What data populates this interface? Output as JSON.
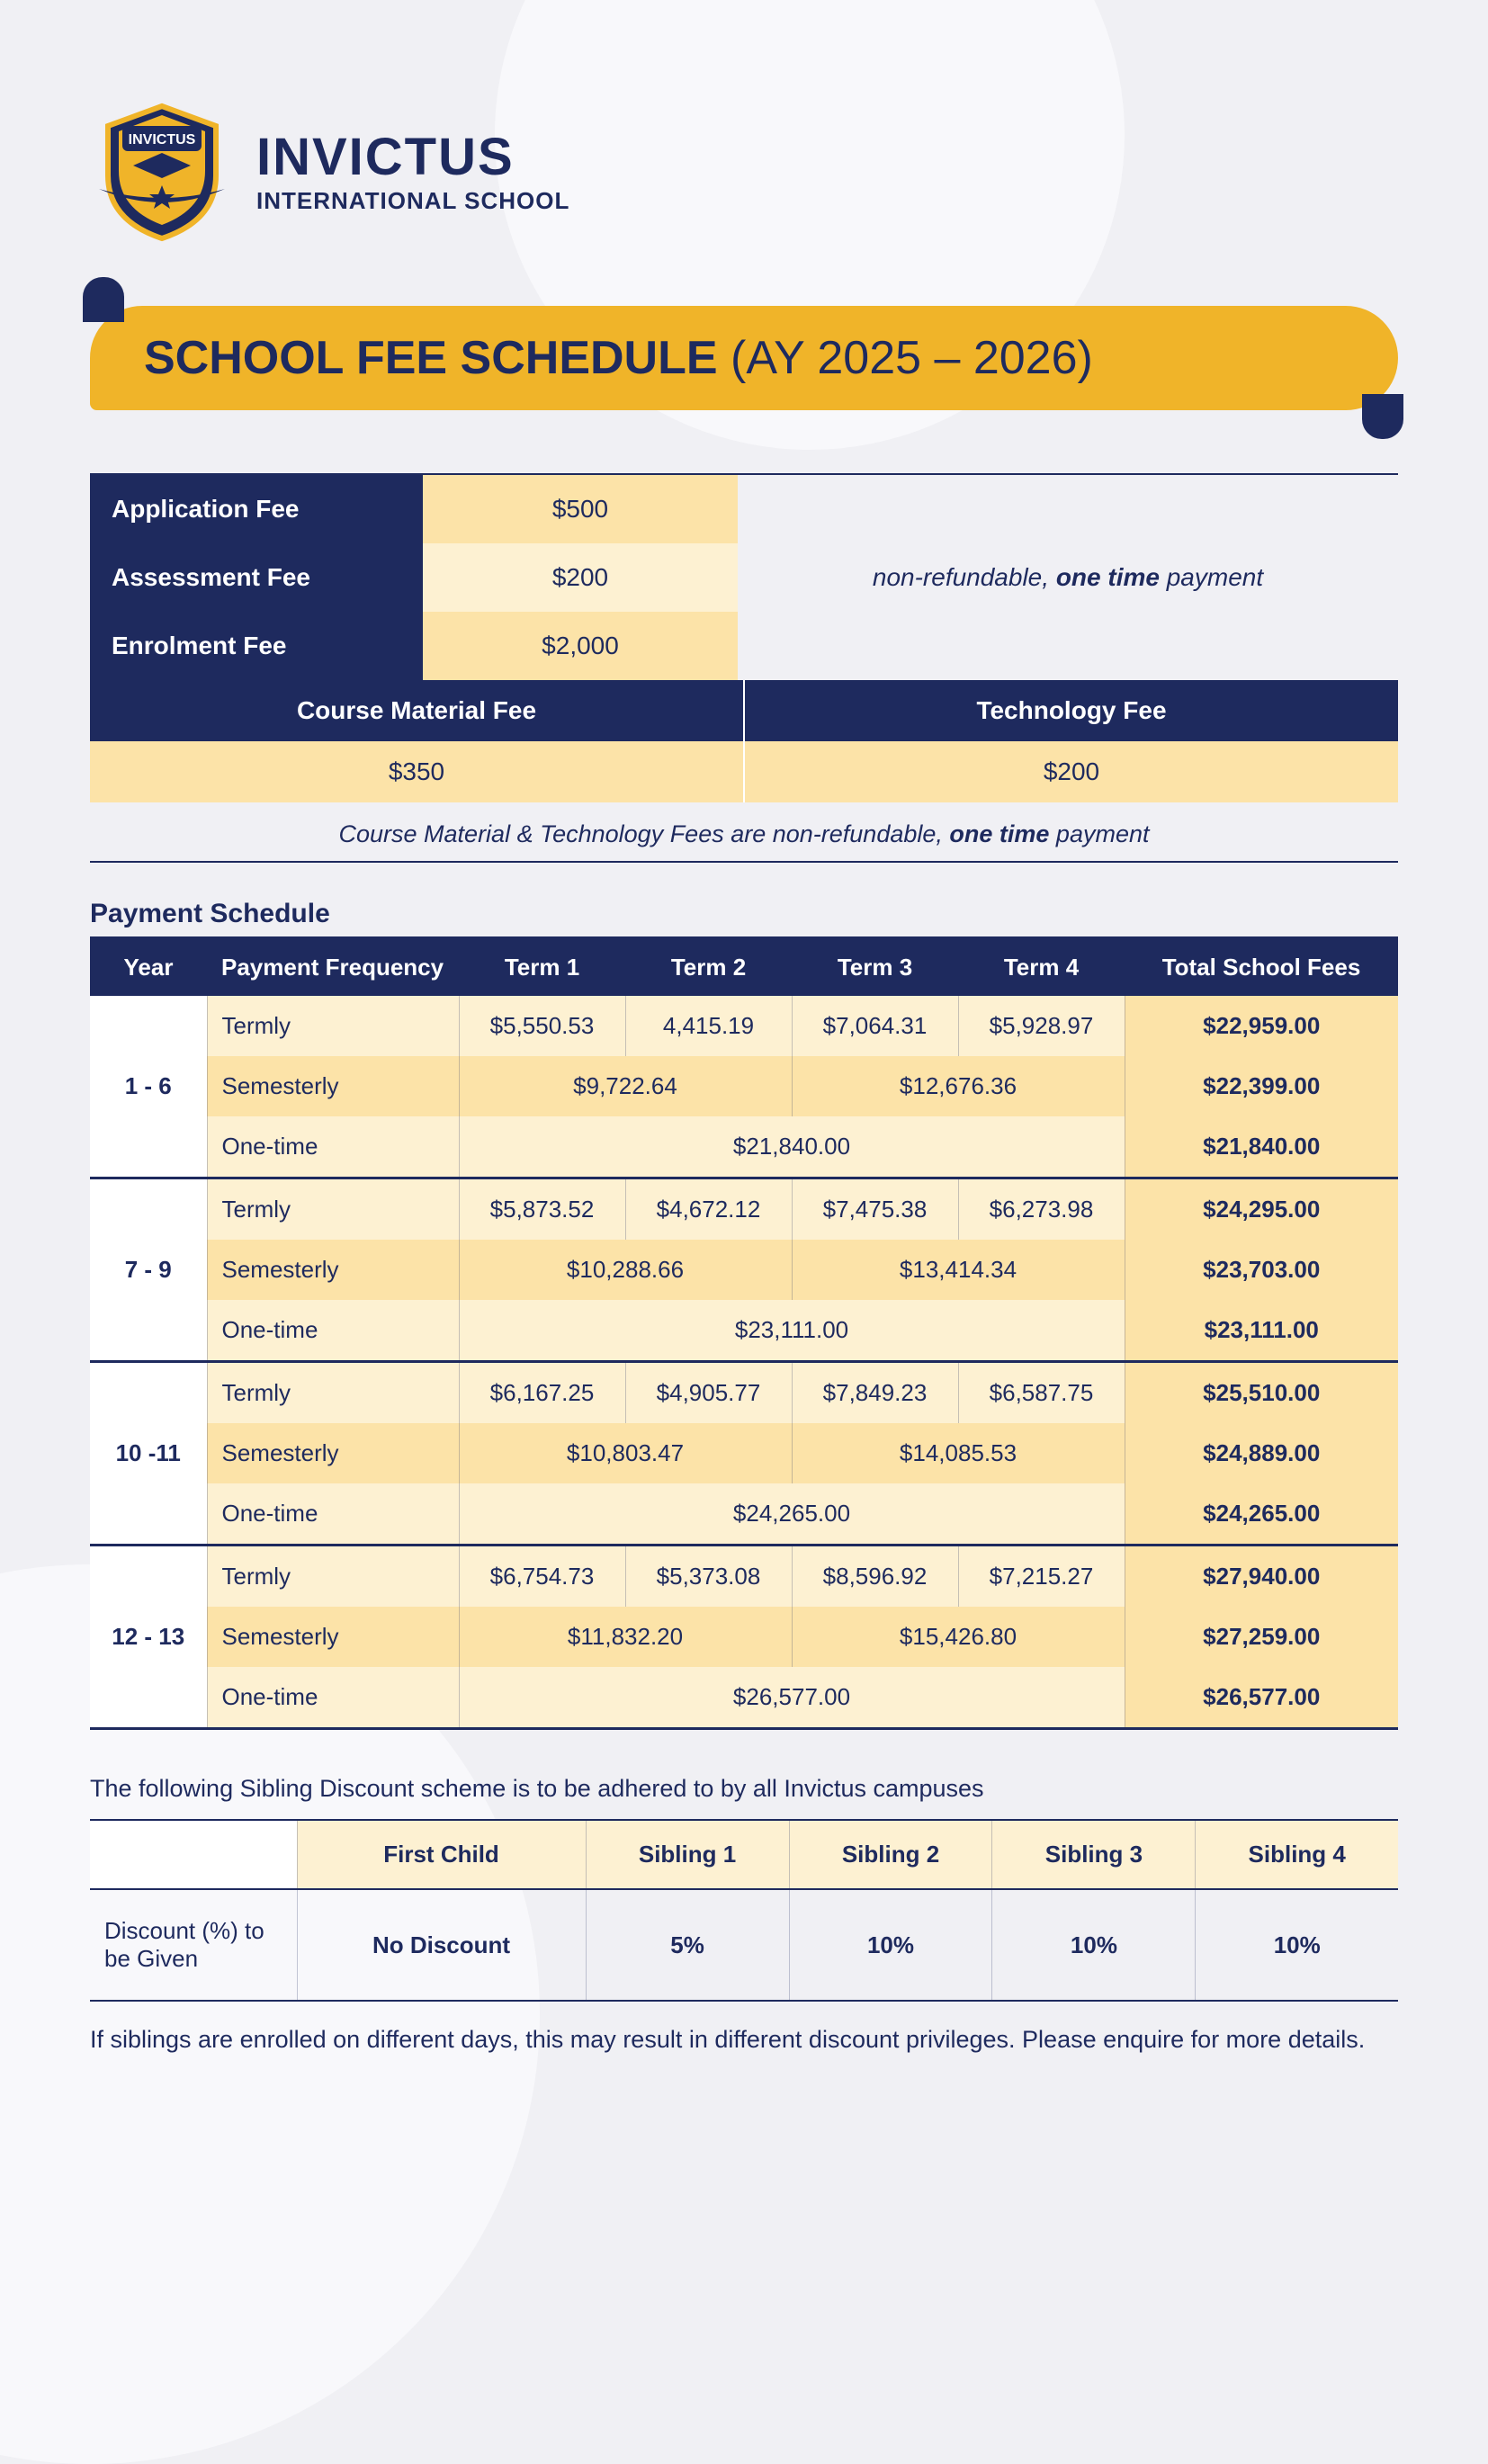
{
  "colors": {
    "navy": "#1e2a5e",
    "gold": "#f0b429",
    "gold_light": "#fdf1d2",
    "gold_mid": "#fce3a8",
    "page_bg": "#f0f0f4"
  },
  "brand": {
    "name": "INVICTUS",
    "subtitle": "INTERNATIONAL SCHOOL",
    "shield_text": "INVICTUS"
  },
  "title": {
    "main": "SCHOOL FEE SCHEDULE",
    "suffix": "(AY 2025 – 2026)"
  },
  "intro_fees": {
    "rows": [
      {
        "label": "Application Fee",
        "value": "$500"
      },
      {
        "label": "Assessment Fee",
        "value": "$200"
      },
      {
        "label": "Enrolment Fee",
        "value": "$2,000"
      }
    ],
    "note_pre": "non-refundable, ",
    "note_bold": "one time",
    "note_post": " payment"
  },
  "material_fees": {
    "headers": [
      "Course Material Fee",
      "Technology Fee"
    ],
    "values": [
      "$350",
      "$200"
    ],
    "note_pre": "Course Material & Technology Fees are non-refundable, ",
    "note_bold": "one time",
    "note_post": " payment"
  },
  "payment_schedule": {
    "heading": "Payment Schedule",
    "columns": [
      "Year",
      "Payment Frequency",
      "Term 1",
      "Term 2",
      "Term 3",
      "Term 4",
      "Total School Fees"
    ],
    "groups": [
      {
        "year": "1 - 6",
        "termly": {
          "label": "Termly",
          "t1": "$5,550.53",
          "t2": "4,415.19",
          "t3": "$7,064.31",
          "t4": "$5,928.97",
          "total": "$22,959.00"
        },
        "semesterly": {
          "label": "Semesterly",
          "s1": "$9,722.64",
          "s2": "$12,676.36",
          "total": "$22,399.00"
        },
        "onetime": {
          "label": "One-time",
          "v": "$21,840.00",
          "total": "$21,840.00"
        }
      },
      {
        "year": "7 - 9",
        "termly": {
          "label": "Termly",
          "t1": "$5,873.52",
          "t2": "$4,672.12",
          "t3": "$7,475.38",
          "t4": "$6,273.98",
          "total": "$24,295.00"
        },
        "semesterly": {
          "label": "Semesterly",
          "s1": "$10,288.66",
          "s2": "$13,414.34",
          "total": "$23,703.00"
        },
        "onetime": {
          "label": "One-time",
          "v": "$23,111.00",
          "total": "$23,111.00"
        }
      },
      {
        "year": "10 -11",
        "termly": {
          "label": "Termly",
          "t1": "$6,167.25",
          "t2": "$4,905.77",
          "t3": "$7,849.23",
          "t4": "$6,587.75",
          "total": "$25,510.00"
        },
        "semesterly": {
          "label": "Semesterly",
          "s1": "$10,803.47",
          "s2": "$14,085.53",
          "total": "$24,889.00"
        },
        "onetime": {
          "label": "One-time",
          "v": "$24,265.00",
          "total": "$24,265.00"
        }
      },
      {
        "year": "12 - 13",
        "termly": {
          "label": "Termly",
          "t1": "$6,754.73",
          "t2": "$5,373.08",
          "t3": "$8,596.92",
          "t4": "$7,215.27",
          "total": "$27,940.00"
        },
        "semesterly": {
          "label": "Semesterly",
          "s1": "$11,832.20",
          "s2": "$15,426.80",
          "total": "$27,259.00"
        },
        "onetime": {
          "label": "One-time",
          "v": "$26,577.00",
          "total": "$26,577.00"
        }
      }
    ]
  },
  "sibling": {
    "intro": "The following Sibling Discount scheme is to be adhered to by all Invictus campuses",
    "headers": [
      "First Child",
      "Sibling 1",
      "Sibling 2",
      "Sibling 3",
      "Sibling 4"
    ],
    "row_label": "Discount (%) to be Given",
    "values": [
      "No Discount",
      "5%",
      "10%",
      "10%",
      "10%"
    ],
    "footer": "If siblings are enrolled on different days, this may result in different discount privileges. Please enquire for more details."
  }
}
